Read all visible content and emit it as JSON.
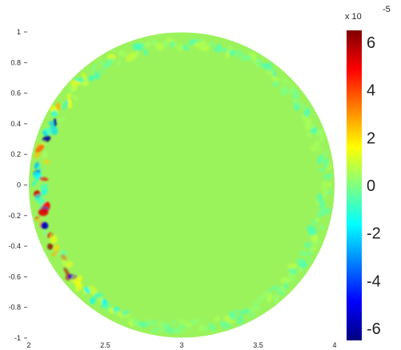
{
  "chart_data": {
    "type": "heatmap",
    "description_shape": "circular domain",
    "xlim": [
      2,
      4
    ],
    "ylim": [
      -1,
      1
    ],
    "x_ticks": [
      "2",
      "2.5",
      "3",
      "3.5",
      "4"
    ],
    "y_ticks": [
      "1",
      "0.8",
      "0.6",
      "0.4",
      "0.2",
      "0",
      "-0.2",
      "-0.4",
      "-0.6",
      "-0.8",
      "-1"
    ],
    "circle": {
      "center": [
        3,
        0
      ],
      "radius": 1
    },
    "background_value": 0,
    "colorbar": {
      "multiplier": "x 10",
      "exponent": "-5",
      "ticks": [
        "6",
        "4",
        "2",
        "0",
        "-2",
        "-4",
        "-6"
      ],
      "range": [
        -6.5,
        6.5
      ],
      "colormap": "jet"
    }
  }
}
